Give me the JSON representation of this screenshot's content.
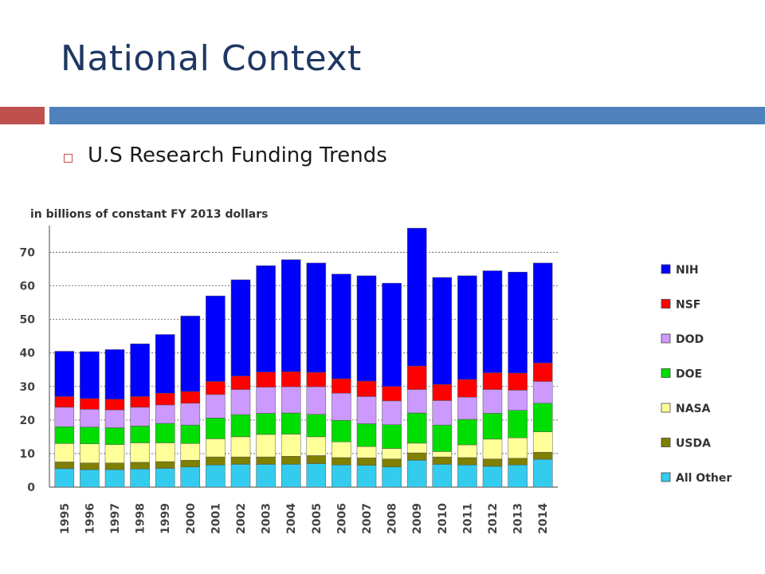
{
  "slide": {
    "title": "National Context",
    "bullet": "U.S Research Funding Trends"
  },
  "colors": {
    "title": "#1f3864",
    "accent_red": "#c0504d",
    "accent_blue": "#4f81bd"
  },
  "chart_data": {
    "type": "bar",
    "stacked": true,
    "title": "in billions of constant FY 2013 dollars",
    "xlabel": "",
    "ylabel": "",
    "ylim": [
      0,
      77
    ],
    "yticks": [
      0,
      10,
      20,
      30,
      40,
      50,
      60,
      70
    ],
    "grid": "horizontal dashed",
    "legend_position": "right",
    "categories": [
      "1995",
      "1996",
      "1997",
      "1998",
      "1999",
      "2000",
      "2001",
      "2002",
      "2003",
      "2004",
      "2005",
      "2006",
      "2007",
      "2008",
      "2009",
      "2010",
      "2011",
      "2012",
      "2013",
      "2014"
    ],
    "series": [
      {
        "name": "All Other",
        "color": "#33ccee",
        "values": [
          5.5,
          5.2,
          5.2,
          5.4,
          5.6,
          6.0,
          6.6,
          6.8,
          6.8,
          6.8,
          7.0,
          6.6,
          6.5,
          6.0,
          8.0,
          6.8,
          6.6,
          6.2,
          6.6,
          8.3
        ]
      },
      {
        "name": "USDA",
        "color": "#7f7f00",
        "values": [
          2.0,
          2.0,
          2.0,
          2.0,
          2.0,
          2.0,
          2.4,
          2.2,
          2.2,
          2.4,
          2.4,
          2.2,
          2.2,
          2.4,
          2.2,
          2.2,
          2.2,
          2.2,
          2.0,
          2.1
        ]
      },
      {
        "name": "NASA",
        "color": "#ffff99",
        "values": [
          5.5,
          5.7,
          5.5,
          5.8,
          5.6,
          5.0,
          5.4,
          6.0,
          6.7,
          6.6,
          5.6,
          4.7,
          3.4,
          3.1,
          2.9,
          1.6,
          3.8,
          5.9,
          6.1,
          6.1
        ]
      },
      {
        "name": "DOE",
        "color": "#00dd00",
        "values": [
          5.0,
          5.0,
          5.0,
          5.0,
          5.8,
          5.5,
          6.2,
          6.6,
          6.3,
          6.3,
          6.7,
          6.4,
          6.8,
          7.1,
          9.0,
          7.9,
          7.6,
          7.7,
          8.2,
          8.5
        ]
      },
      {
        "name": "DOD",
        "color": "#cc99ff",
        "values": [
          5.8,
          5.3,
          5.3,
          5.6,
          5.5,
          6.5,
          7.0,
          7.5,
          7.8,
          7.8,
          8.2,
          8.1,
          8.1,
          7.1,
          7.0,
          7.3,
          6.6,
          7.1,
          6.0,
          6.5
        ]
      },
      {
        "name": "NSF",
        "color": "#ff0000",
        "values": [
          3.2,
          3.2,
          3.2,
          3.2,
          3.5,
          3.5,
          3.9,
          4.0,
          4.5,
          4.5,
          4.3,
          4.3,
          4.6,
          4.3,
          7.0,
          4.8,
          5.3,
          5.0,
          5.1,
          5.5
        ]
      },
      {
        "name": "NIH",
        "color": "#0000ff",
        "values": [
          13.5,
          14.0,
          14.8,
          15.7,
          17.5,
          22.5,
          25.5,
          28.7,
          31.7,
          33.4,
          32.6,
          31.2,
          31.4,
          30.8,
          41.1,
          31.9,
          30.9,
          30.4,
          30.1,
          29.8
        ]
      }
    ],
    "legend_order": [
      "NIH",
      "NSF",
      "DOD",
      "DOE",
      "NASA",
      "USDA",
      "All Other"
    ]
  }
}
